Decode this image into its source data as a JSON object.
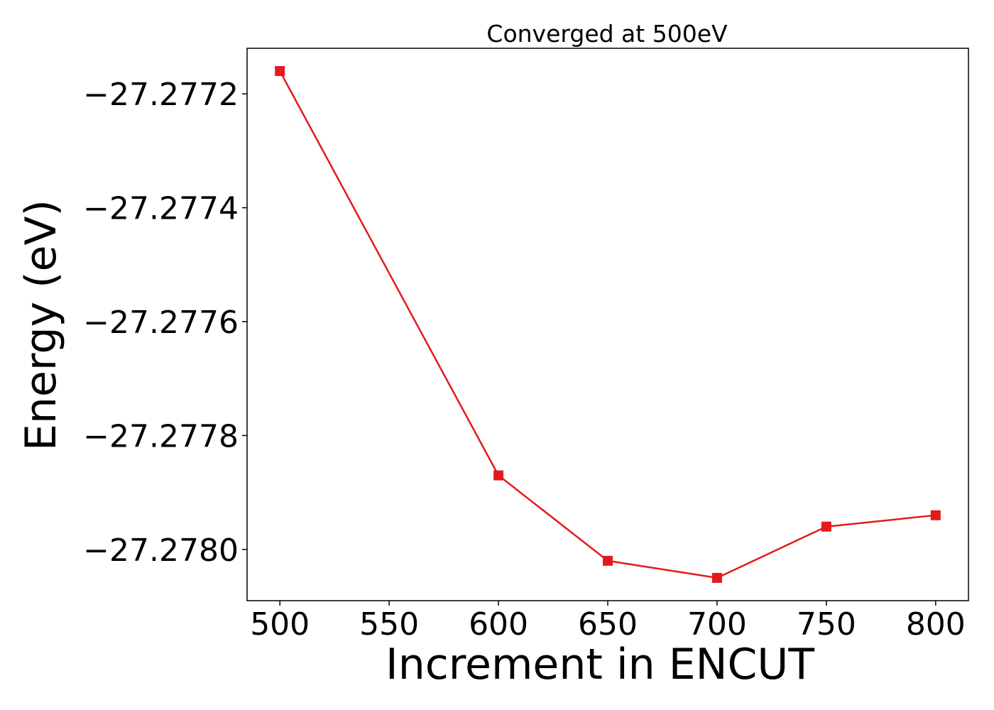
{
  "chart_data": {
    "type": "line",
    "title": "Converged at 500eV",
    "xlabel": "Increment in ENCUT",
    "ylabel": "Energy (eV)",
    "x": [
      500,
      600,
      650,
      700,
      750,
      800
    ],
    "series": [
      {
        "values": [
          -27.27716,
          -27.27787,
          -27.27802,
          -27.27805,
          -27.27796,
          -27.27794
        ],
        "color": "#e41a1c",
        "marker": "square"
      }
    ],
    "xlim": [
      485,
      815
    ],
    "ylim": [
      -27.27809,
      -27.27712
    ],
    "xticks": [
      500,
      550,
      600,
      650,
      700,
      750,
      800
    ],
    "xtick_labels": [
      "500",
      "550",
      "600",
      "650",
      "700",
      "750",
      "800"
    ],
    "yticks": [
      -27.2772,
      -27.2774,
      -27.2776,
      -27.2778,
      -27.278
    ],
    "ytick_labels": [
      "−27.2772",
      "−27.2774",
      "−27.2776",
      "−27.2778",
      "−27.2780"
    ],
    "grid": false,
    "legend": false
  }
}
